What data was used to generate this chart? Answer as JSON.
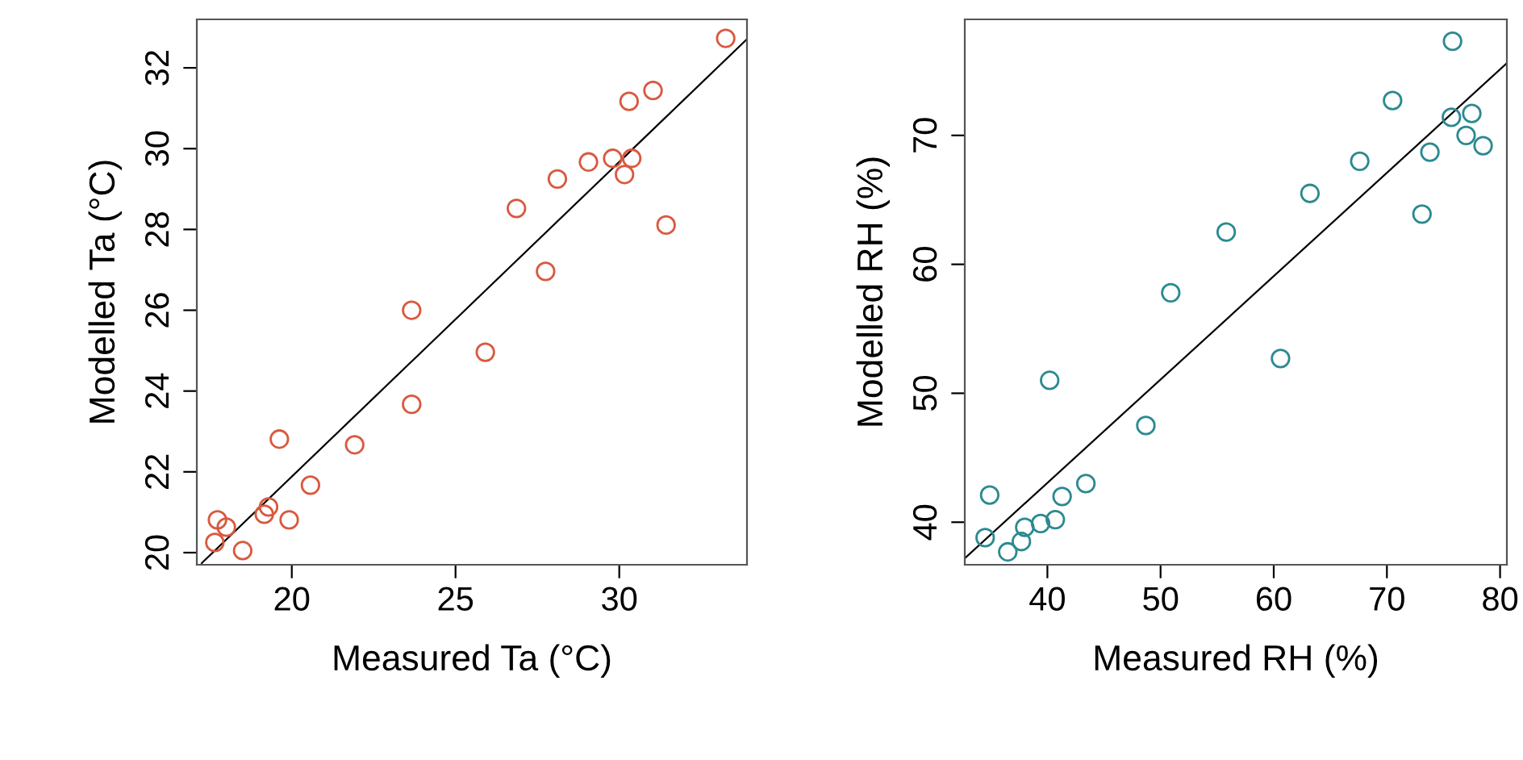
{
  "chart_data": [
    {
      "type": "scatter",
      "xlabel": "Measured Ta (°C)",
      "ylabel": "Modelled Ta (°C)",
      "xlim": [
        17.1,
        33.9
      ],
      "ylim": [
        19.7,
        33.2
      ],
      "xticks": [
        20,
        25,
        30
      ],
      "yticks": [
        20,
        22,
        24,
        26,
        28,
        30,
        32
      ],
      "series": [
        {
          "color": "#d9593f",
          "marker": "circle",
          "x": [
            33.25,
            31.03,
            30.3,
            31.43,
            29.8,
            30.38,
            30.16,
            29.06,
            28.11,
            26.86,
            27.75,
            23.66,
            25.91,
            23.66,
            21.92,
            19.62,
            20.57,
            19.29,
            19.16,
            19.92,
            17.73,
            18.0,
            17.65,
            18.5
          ],
          "values": [
            32.73,
            31.44,
            31.17,
            28.11,
            29.76,
            29.76,
            29.36,
            29.67,
            29.25,
            28.52,
            26.96,
            26.0,
            24.96,
            23.67,
            22.67,
            22.81,
            21.67,
            21.13,
            20.95,
            20.81,
            20.81,
            20.63,
            20.25,
            20.05
          ]
        },
        {
          "type": "line",
          "color": "#000000",
          "marker": "none",
          "x": [
            17.25,
            33.9
          ],
          "values": [
            19.74,
            32.71
          ]
        }
      ]
    },
    {
      "type": "scatter",
      "xlabel": "Measured RH (%)",
      "ylabel": "Modelled RH (%)",
      "xlim": [
        32.7,
        80.6
      ],
      "ylim": [
        36.7,
        79
      ],
      "xticks": [
        40,
        50,
        60,
        70,
        80
      ],
      "yticks": [
        40,
        50,
        60,
        70
      ],
      "series": [
        {
          "color": "#2b8a90",
          "marker": "circle",
          "x": [
            75.8,
            70.5,
            75.7,
            77.5,
            77.0,
            78.5,
            73.8,
            67.6,
            73.1,
            63.2,
            55.8,
            50.9,
            60.6,
            40.2,
            48.7,
            43.4,
            41.3,
            34.9,
            40.7,
            39.4,
            38.0,
            37.7,
            34.5,
            36.5
          ],
          "values": [
            77.3,
            72.7,
            71.4,
            71.7,
            70.0,
            69.2,
            68.7,
            68.0,
            63.9,
            65.5,
            62.5,
            57.8,
            52.7,
            51.0,
            47.5,
            43.0,
            42.0,
            42.1,
            40.2,
            39.9,
            39.6,
            38.5,
            38.8,
            37.7
          ]
        },
        {
          "type": "line",
          "color": "#000000",
          "marker": "none",
          "x": [
            32.7,
            80.6
          ],
          "values": [
            37.2,
            75.6
          ]
        }
      ]
    }
  ]
}
